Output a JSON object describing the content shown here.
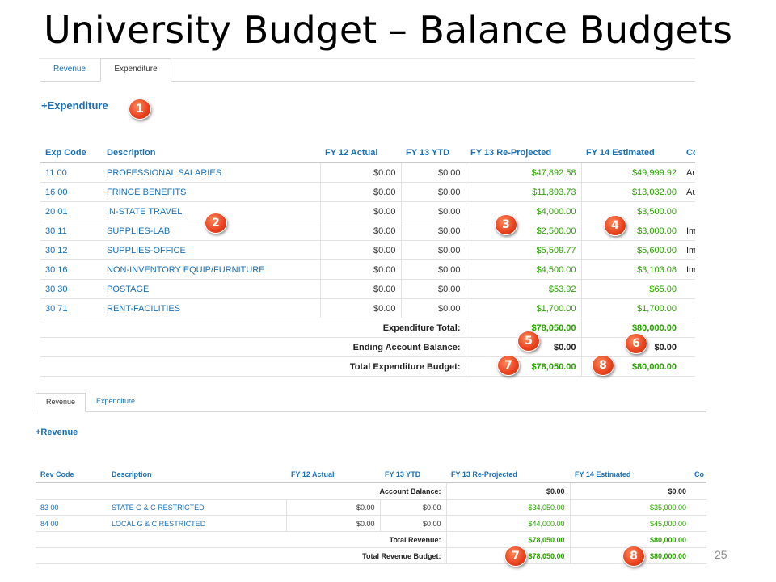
{
  "slide": {
    "title": "University Budget – Balance Budgets",
    "page_number": "25"
  },
  "expenditure_panel": {
    "tabs": [
      {
        "label": "Revenue",
        "active": false
      },
      {
        "label": "Expenditure",
        "active": true
      }
    ],
    "add_link": "+Expenditure",
    "columns": [
      "Exp Code",
      "Description",
      "FY 12 Actual",
      "FY 13 YTD",
      "FY 13 Re-Projected",
      "FY 14 Estimated",
      "Co"
    ],
    "rows": [
      {
        "code": "11 00",
        "description": "PROFESSIONAL SALARIES",
        "fy12": "$0.00",
        "fy13ytd": "$0.00",
        "fy13rp": "$47,892.58",
        "fy14": "$49,999.92",
        "comment": "Au"
      },
      {
        "code": "16 00",
        "description": "FRINGE BENEFITS",
        "fy12": "$0.00",
        "fy13ytd": "$0.00",
        "fy13rp": "$11,893.73",
        "fy14": "$13,032.00",
        "comment": "Au"
      },
      {
        "code": "20 01",
        "description": "IN-STATE TRAVEL",
        "fy12": "$0.00",
        "fy13ytd": "$0.00",
        "fy13rp": "$4,000.00",
        "fy14": "$3,500.00",
        "comment": ""
      },
      {
        "code": "30 11",
        "description": "SUPPLIES-LAB",
        "fy12": "$0.00",
        "fy13ytd": "$0.00",
        "fy13rp": "$2,500.00",
        "fy14": "$3,000.00",
        "comment": "Im"
      },
      {
        "code": "30 12",
        "description": "SUPPLIES-OFFICE",
        "fy12": "$0.00",
        "fy13ytd": "$0.00",
        "fy13rp": "$5,509.77",
        "fy14": "$5,600.00",
        "comment": "Im"
      },
      {
        "code": "30 16",
        "description": "NON-INVENTORY EQUIP/FURNITURE",
        "fy12": "$0.00",
        "fy13ytd": "$0.00",
        "fy13rp": "$4,500.00",
        "fy14": "$3,103.08",
        "comment": "Im"
      },
      {
        "code": "30 30",
        "description": "POSTAGE",
        "fy12": "$0.00",
        "fy13ytd": "$0.00",
        "fy13rp": "$53.92",
        "fy14": "$65.00",
        "comment": ""
      },
      {
        "code": "30 71",
        "description": "RENT-FACILITIES",
        "fy12": "$0.00",
        "fy13ytd": "$0.00",
        "fy13rp": "$1,700.00",
        "fy14": "$1,700.00",
        "comment": ""
      }
    ],
    "totals": [
      {
        "label": "Expenditure Total:",
        "fy13rp": "$78,050.00",
        "fy14": "$80,000.00"
      },
      {
        "label": "Ending Account Balance:",
        "fy13rp": "$0.00",
        "fy14": "$0.00"
      },
      {
        "label": "Total Expenditure Budget:",
        "fy13rp": "$78,050.00",
        "fy14": "$80,000.00"
      }
    ]
  },
  "revenue_panel": {
    "tabs": [
      {
        "label": "Revenue",
        "active": true
      },
      {
        "label": "Expenditure",
        "active": false
      }
    ],
    "add_link": "+Revenue",
    "columns": [
      "Rev Code",
      "Description",
      "FY 12 Actual",
      "FY 13 YTD",
      "FY 13 Re-Projected",
      "FY 14 Estimated",
      "Co"
    ],
    "account_balance": {
      "label": "Account Balance:",
      "fy13rp": "$0.00",
      "fy14": "$0.00"
    },
    "rows": [
      {
        "code": "83 00",
        "description": "STATE G & C RESTRICTED",
        "fy12": "$0.00",
        "fy13ytd": "$0.00",
        "fy13rp": "$34,050.00",
        "fy14": "$35,000.00"
      },
      {
        "code": "84 00",
        "description": "LOCAL G & C RESTRICTED",
        "fy12": "$0.00",
        "fy13ytd": "$0.00",
        "fy13rp": "$44,000.00",
        "fy14": "$45,000.00"
      }
    ],
    "totals": [
      {
        "label": "Total Revenue:",
        "fy13rp": "$78,050.00",
        "fy14": "$80,000.00"
      },
      {
        "label": "Total Revenue Budget:",
        "fy13rp": "$78,050.00",
        "fy14": "$80,000.00"
      }
    ]
  },
  "callouts": [
    "1",
    "2",
    "3",
    "4",
    "5",
    "6",
    "7",
    "8",
    "7",
    "8"
  ]
}
